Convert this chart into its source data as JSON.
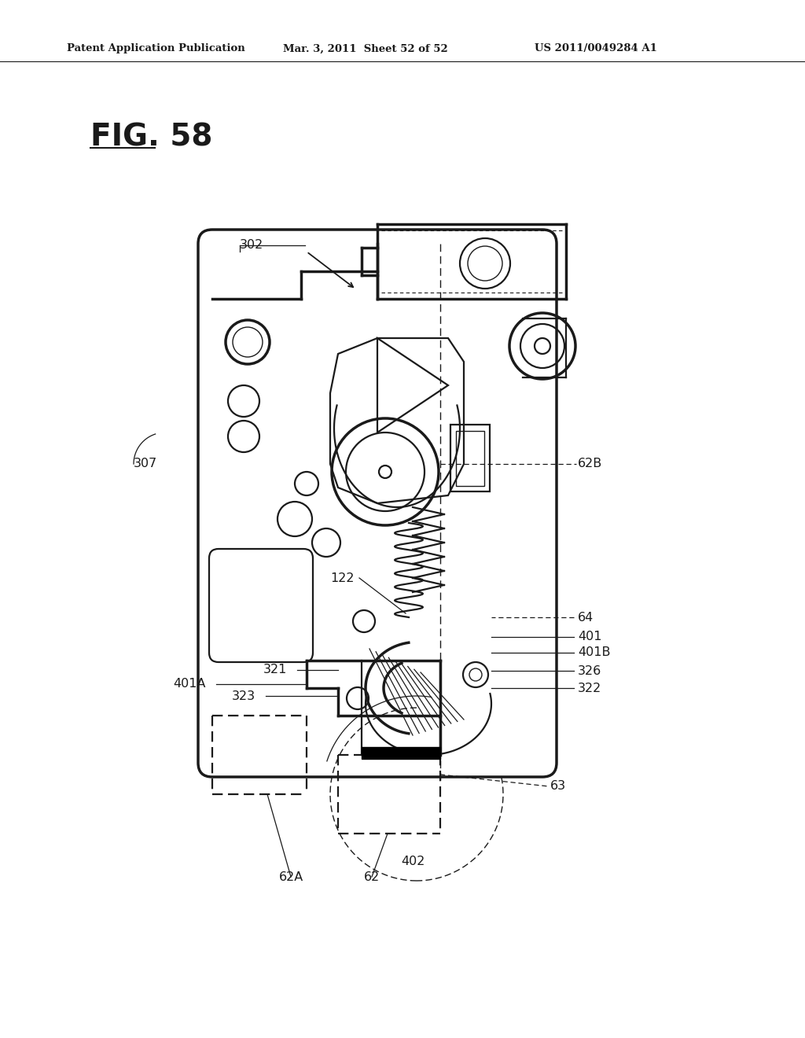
{
  "bg_color": "#ffffff",
  "line_color": "#1a1a1a",
  "header_left": "Patent Application Publication",
  "header_mid": "Mar. 3, 2011  Sheet 52 of 52",
  "header_right": "US 2011/0049284 A1",
  "fig_label": "FIG. 58"
}
